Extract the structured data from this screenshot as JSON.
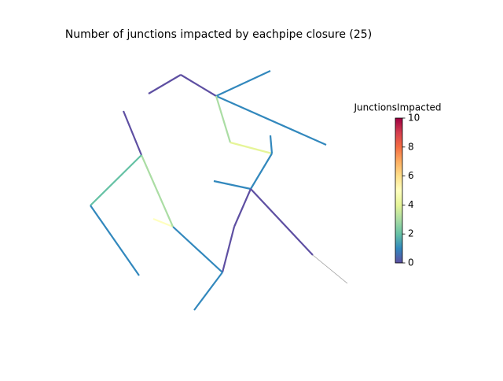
{
  "chart_data": {
    "type": "network",
    "title": "Number of junctions impacted by eachpipe closure (25)",
    "colorbar_label": "JunctionsImpacted",
    "values": [
      0,
      0,
      1,
      1,
      3,
      4,
      1,
      1,
      1,
      0,
      null,
      0,
      0,
      1,
      1,
      5,
      3,
      0,
      2,
      1
    ],
    "colors": [
      "#5e4fa2",
      "#3288bd",
      "#66c2a5",
      "#abdda4",
      "#e6f598",
      "#ffffbf",
      "#fee08b",
      "#fdae61",
      "#f46d43",
      "#d53e4f",
      "#9e0142"
    ],
    "clim": [
      0,
      10
    ],
    "cticks": [
      0,
      2,
      4,
      6,
      8,
      10
    ]
  }
}
